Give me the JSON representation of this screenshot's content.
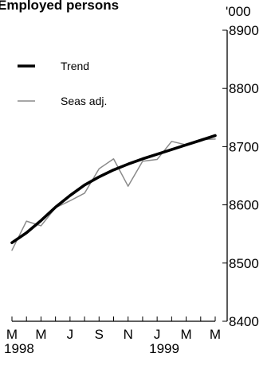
{
  "chart_data": {
    "type": "line",
    "title": "Employed persons",
    "unit_label": "'000",
    "ylim": [
      8400,
      8900
    ],
    "y_ticks": [
      8400,
      8500,
      8600,
      8700,
      8800,
      8900
    ],
    "x_tick_labels": [
      "M",
      "M",
      "J",
      "S",
      "N",
      "J",
      "M",
      "M"
    ],
    "x_tick_months": [
      "1998-03",
      "1998-05",
      "1998-07",
      "1998-09",
      "1998-11",
      "1999-01",
      "1999-03",
      "1999-05"
    ],
    "year_labels": [
      {
        "label": "1998",
        "month": "1998-03"
      },
      {
        "label": "1999",
        "month": "1999-01"
      }
    ],
    "x": [
      "1998-03",
      "1998-04",
      "1998-05",
      "1998-06",
      "1998-07",
      "1998-08",
      "1998-09",
      "1998-10",
      "1998-11",
      "1998-12",
      "1999-01",
      "1999-02",
      "1999-03",
      "1999-04",
      "1999-05"
    ],
    "series": [
      {
        "name": "Trend",
        "color": "#000000",
        "style": "thick",
        "values": [
          8535,
          8552,
          8573,
          8596,
          8616,
          8634,
          8648,
          8660,
          8670,
          8679,
          8687,
          8695,
          8703,
          8711,
          8719
        ]
      },
      {
        "name": "Seas adj.",
        "color": "#8a8a8a",
        "style": "thin",
        "values": [
          8522,
          8572,
          8564,
          8595,
          8607,
          8620,
          8662,
          8679,
          8632,
          8675,
          8678,
          8709,
          8703,
          8712,
          8713
        ]
      }
    ],
    "legend_position": "left",
    "grid": false
  }
}
